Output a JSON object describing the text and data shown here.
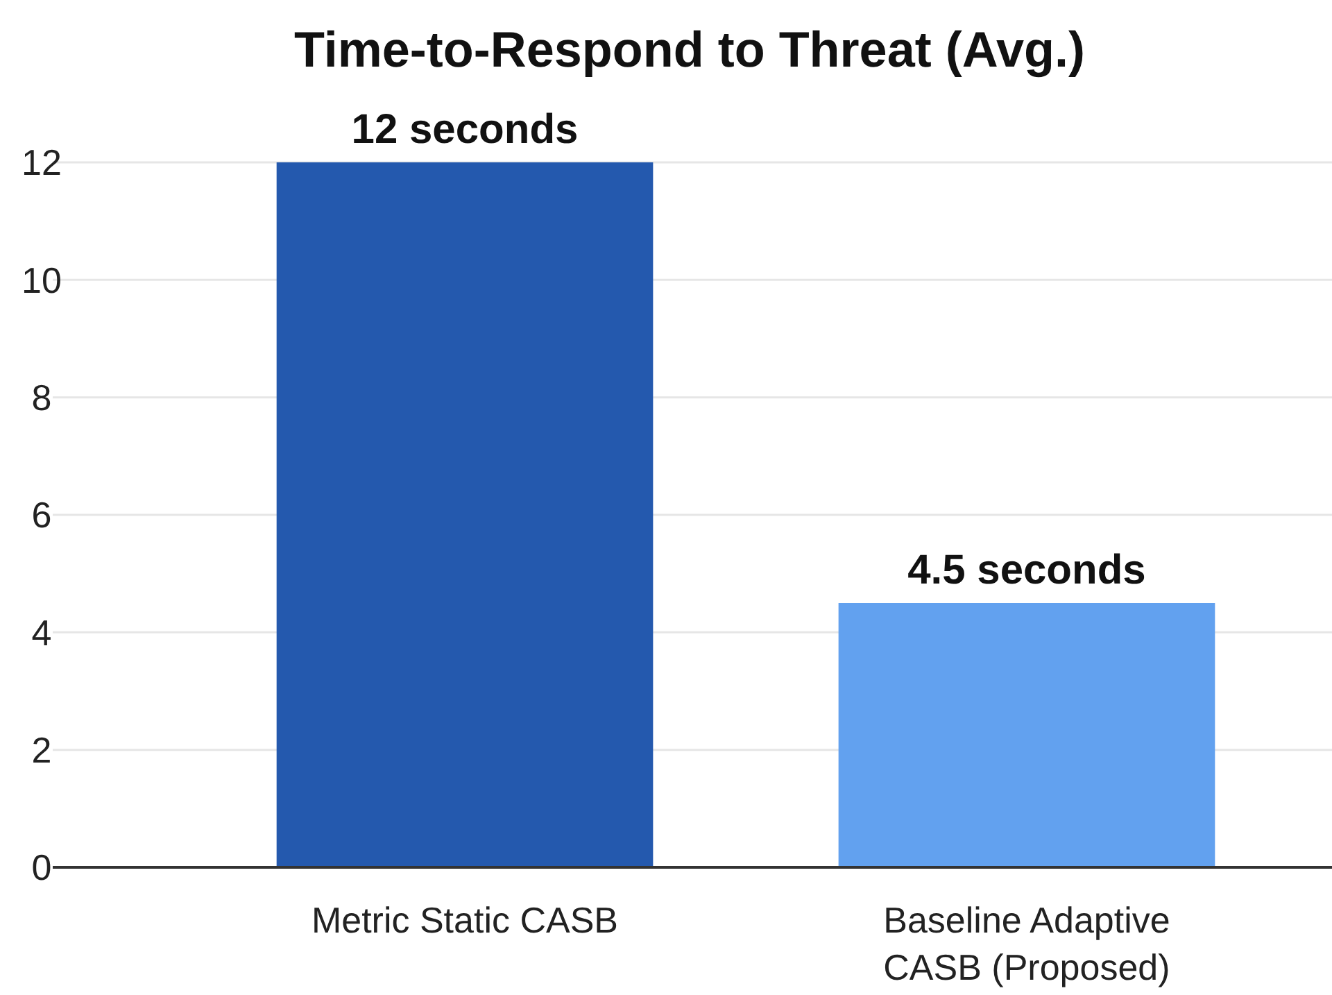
{
  "chart_data": {
    "type": "bar",
    "title": "Time-to-Respond to Threat (Avg.)",
    "categories": [
      "Metric Static CASB",
      "Baseline Adaptive CASB (Proposed)"
    ],
    "values": [
      12,
      4.5
    ],
    "colors": [
      "#2459ae",
      "#62a1ef"
    ],
    "value_labels": [
      "12 seconds",
      "4.5 seconds"
    ],
    "ylim": [
      0,
      12
    ],
    "yticks": [
      0,
      2,
      4,
      6,
      8,
      10,
      12
    ],
    "grid": "y"
  }
}
